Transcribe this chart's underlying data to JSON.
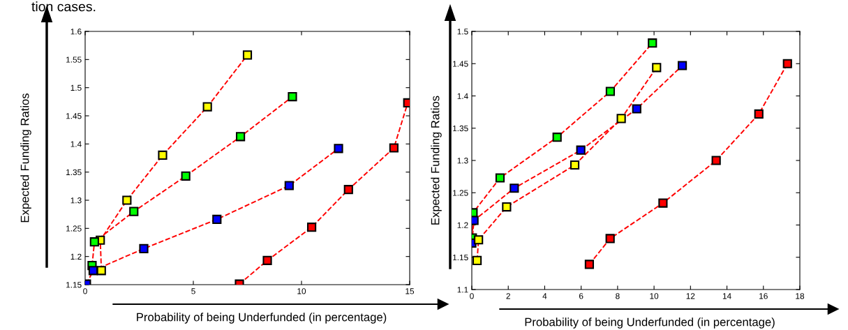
{
  "chart_data": [
    {
      "type": "line",
      "xlabel": "Probability of being Underfunded (in percentage)",
      "ylabel": "Expected Funding Ratios",
      "annotations": [
        "tion cases."
      ],
      "xlim": [
        0,
        15
      ],
      "ylim": [
        1.15,
        1.6
      ],
      "xticks": [
        0,
        5,
        10,
        15
      ],
      "yticks": [
        1.15,
        1.2,
        1.25,
        1.3,
        1.35,
        1.4,
        1.45,
        1.5,
        1.55,
        1.6
      ],
      "marker": "square",
      "line_style": "dashed",
      "grid": false,
      "legend": false,
      "series": [
        {
          "color": "#ff0000",
          "colors": [
            "#ffff00",
            "#ffff00",
            "#ffff00",
            "#ffff00",
            "#ffff00",
            "#ffff00"
          ],
          "x": [
            0.75,
            0.7,
            1.93,
            3.58,
            5.65,
            7.5
          ],
          "values": [
            1.175,
            1.229,
            1.3,
            1.38,
            1.466,
            1.558
          ]
        },
        {
          "color": "#ff0000",
          "colors": [
            "#00ff00",
            "#00ff00",
            "#00ff00",
            "#00ff00",
            "#00ff00",
            "#00ff00"
          ],
          "x": [
            0.32,
            0.43,
            2.25,
            4.65,
            7.18,
            9.58
          ],
          "values": [
            1.184,
            1.226,
            1.28,
            1.343,
            1.413,
            1.484
          ]
        },
        {
          "color": "#ff0000",
          "colors": [
            "#0000ff",
            "#0000ff",
            "#0000ff",
            "#0000ff",
            "#0000ff",
            "#0000ff"
          ],
          "x": [
            0.06,
            0.37,
            2.71,
            6.09,
            9.43,
            11.71
          ],
          "values": [
            1.151,
            1.175,
            1.214,
            1.266,
            1.326,
            1.392
          ]
        },
        {
          "color": "#ff0000",
          "colors": [
            "#ff0000",
            "#ff0000",
            "#ff0000",
            "#ff0000",
            "#ff0000",
            "#ff0000"
          ],
          "x": [
            7.13,
            8.42,
            10.47,
            12.17,
            14.27,
            14.91
          ],
          "values": [
            1.151,
            1.193,
            1.252,
            1.319,
            1.393,
            1.473
          ]
        }
      ]
    },
    {
      "type": "line",
      "xlabel": "Probability of being Underfunded (in percentage)",
      "ylabel": "Expected Funding Ratios",
      "xlim": [
        0,
        18
      ],
      "ylim": [
        1.1,
        1.5
      ],
      "xticks": [
        0,
        2,
        4,
        6,
        8,
        10,
        12,
        14,
        16,
        18
      ],
      "yticks": [
        1.1,
        1.15,
        1.2,
        1.25,
        1.3,
        1.35,
        1.4,
        1.45,
        1.5
      ],
      "marker": "square",
      "line_style": "dashed",
      "grid": false,
      "legend": false,
      "series": [
        {
          "color": "#ff0000",
          "colors": [
            "#00ff00",
            "#00ff00",
            "#00ff00",
            "#00ff00",
            "#00ff00",
            "#00ff00"
          ],
          "x": [
            0.03,
            0.07,
            1.55,
            4.68,
            7.6,
            9.91
          ],
          "values": [
            1.18,
            1.219,
            1.273,
            1.336,
            1.407,
            1.482
          ]
        },
        {
          "color": "#ff0000",
          "colors": [
            "#0000ff",
            "#0000ff",
            "#0000ff",
            "#0000ff",
            "#0000ff",
            "#0000ff"
          ],
          "x": [
            0.0,
            0.12,
            2.33,
            5.98,
            9.05,
            11.55
          ],
          "values": [
            1.172,
            1.207,
            1.257,
            1.316,
            1.38,
            1.447
          ]
        },
        {
          "color": "#ff0000",
          "colors": [
            "#ffff00",
            "#ffff00",
            "#ffff00",
            "#ffff00",
            "#ffff00",
            "#ffff00"
          ],
          "x": [
            0.29,
            0.37,
            1.91,
            5.65,
            8.2,
            10.14
          ],
          "values": [
            1.145,
            1.177,
            1.228,
            1.293,
            1.365,
            1.444
          ]
        },
        {
          "color": "#ff0000",
          "colors": [
            "#ff0000",
            "#ff0000",
            "#ff0000",
            "#ff0000",
            "#ff0000",
            "#ff0000"
          ],
          "x": [
            6.45,
            7.59,
            10.49,
            13.41,
            15.75,
            17.32
          ],
          "values": [
            1.139,
            1.179,
            1.234,
            1.3,
            1.372,
            1.45
          ]
        }
      ]
    }
  ]
}
